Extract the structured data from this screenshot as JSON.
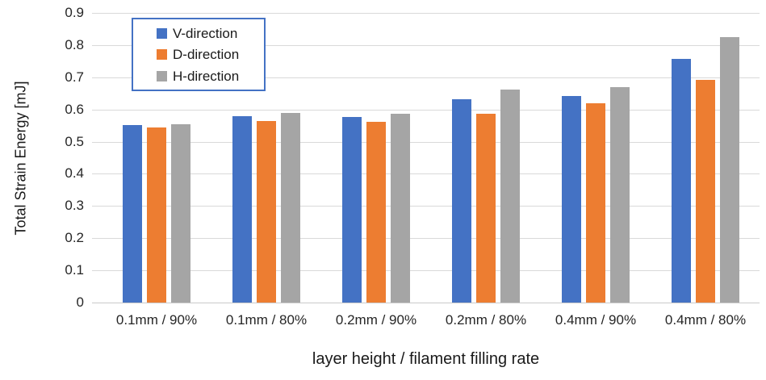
{
  "colors": {
    "series_blue": "#4472C4",
    "series_orange": "#ED7D31",
    "series_gray": "#A5A5A5",
    "gridline": "#D9D9D9",
    "legend_border": "#4472C4",
    "text": "#262626"
  },
  "chart_data": {
    "type": "bar",
    "title": "",
    "xlabel": "layer height / filament filling rate",
    "ylabel": "Total Strain Energy [mJ]",
    "ylim": [
      0,
      0.9
    ],
    "ytick_step": 0.1,
    "ytick_labels": [
      "0",
      "0.1",
      "0.2",
      "0.3",
      "0.4",
      "0.5",
      "0.6",
      "0.7",
      "0.8",
      "0.9"
    ],
    "grid": true,
    "legend_position": "inside-top-left",
    "categories": [
      "0.1mm / 90%",
      "0.1mm / 80%",
      "0.2mm / 90%",
      "0.2mm / 80%",
      "0.4mm / 90%",
      "0.4mm / 80%"
    ],
    "series": [
      {
        "name": "V-direction",
        "color": "#4472C4",
        "values": [
          0.552,
          0.579,
          0.576,
          0.632,
          0.642,
          0.758
        ]
      },
      {
        "name": "D-direction",
        "color": "#ED7D31",
        "values": [
          0.544,
          0.563,
          0.562,
          0.587,
          0.62,
          0.691
        ]
      },
      {
        "name": "H-direction",
        "color": "#A5A5A5",
        "values": [
          0.555,
          0.59,
          0.587,
          0.663,
          0.67,
          0.824
        ]
      }
    ]
  }
}
